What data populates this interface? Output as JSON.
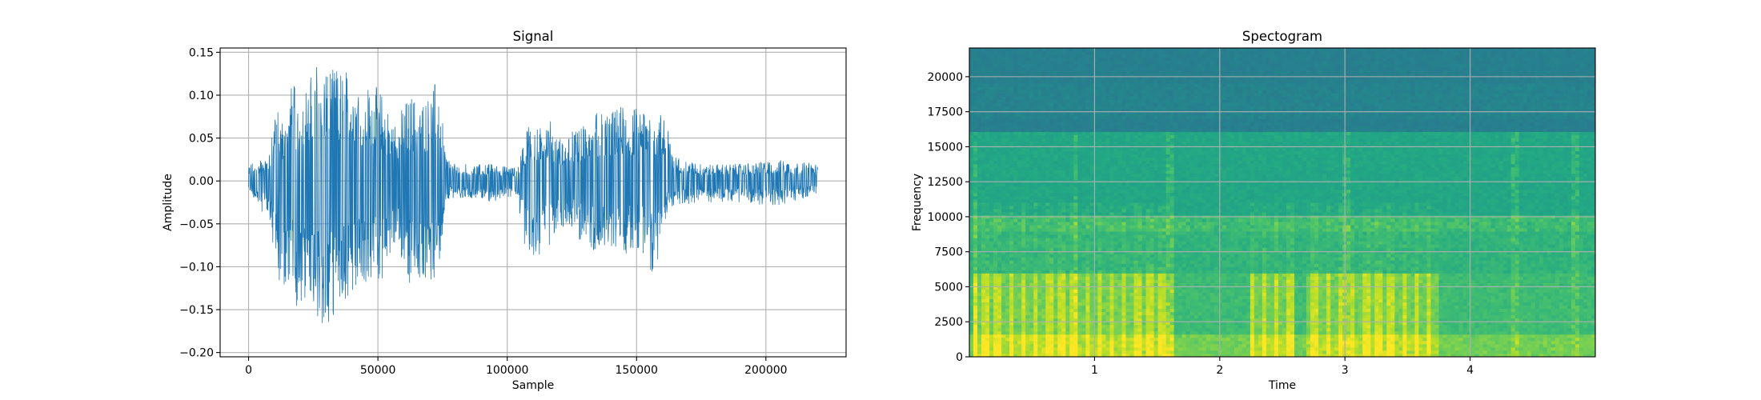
{
  "chart_data": [
    {
      "type": "line",
      "title": "Signal",
      "xlabel": "Sample",
      "ylabel": "Amplitude",
      "xlim": [
        -11000,
        231000
      ],
      "ylim": [
        -0.205,
        0.155
      ],
      "grid": true,
      "xticks": [
        0,
        50000,
        100000,
        150000,
        200000
      ],
      "xtick_labels": [
        "0",
        "50000",
        "100000",
        "150000",
        "200000"
      ],
      "yticks": [
        -0.2,
        -0.15,
        -0.1,
        -0.05,
        0.0,
        0.05,
        0.1,
        0.15
      ],
      "ytick_labels": [
        "−0.20",
        "−0.15",
        "−0.10",
        "−0.05",
        "0.00",
        "0.05",
        "0.10",
        "0.15"
      ],
      "color": "#1f77b4",
      "series": [
        {
          "x": [
            0,
            8000,
            10000,
            14000,
            17000,
            20000,
            24000,
            27000,
            30000,
            33000,
            36000,
            39000,
            42000,
            44000,
            48000,
            52000,
            56000,
            60000,
            63000,
            66000,
            70000,
            72000,
            74000,
            76000,
            78000,
            84000,
            94000,
            104000,
            108000,
            112000,
            116000,
            120000,
            124000,
            128000,
            132000,
            136000,
            140000,
            144000,
            148000,
            152000,
            156000,
            160000,
            162000,
            164000,
            175000,
            190000,
            205000,
            220000
          ],
          "upper": [
            0.02,
            0.03,
            0.095,
            0.065,
            0.12,
            0.085,
            0.13,
            0.14,
            0.135,
            0.13,
            0.13,
            0.13,
            0.13,
            0.11,
            0.115,
            0.1,
            0.065,
            0.09,
            0.1,
            0.09,
            0.1,
            0.115,
            0.13,
            0.035,
            0.02,
            0.02,
            0.02,
            0.015,
            0.07,
            0.06,
            0.075,
            0.05,
            0.06,
            0.06,
            0.08,
            0.08,
            0.08,
            0.09,
            0.085,
            0.09,
            0.085,
            0.08,
            0.105,
            0.03,
            0.02,
            0.02,
            0.025,
            0.02
          ],
          "lower": [
            -0.01,
            -0.05,
            -0.09,
            -0.15,
            -0.125,
            -0.165,
            -0.13,
            -0.17,
            -0.19,
            -0.16,
            -0.14,
            -0.15,
            -0.13,
            -0.12,
            -0.12,
            -0.12,
            -0.075,
            -0.1,
            -0.13,
            -0.12,
            -0.14,
            -0.11,
            -0.09,
            -0.03,
            -0.02,
            -0.02,
            -0.025,
            -0.02,
            -0.1,
            -0.09,
            -0.08,
            -0.06,
            -0.05,
            -0.07,
            -0.085,
            -0.075,
            -0.085,
            -0.09,
            -0.08,
            -0.08,
            -0.11,
            -0.08,
            -0.03,
            -0.03,
            -0.025,
            -0.025,
            -0.03,
            -0.015
          ]
        }
      ]
    },
    {
      "type": "heatmap",
      "title": "Spectogram",
      "xlabel": "Time",
      "ylabel": "Frequency",
      "xlim": [
        0,
        5
      ],
      "ylim": [
        0,
        22050
      ],
      "grid": true,
      "xticks": [
        1,
        2,
        3,
        4
      ],
      "xtick_labels": [
        "1",
        "2",
        "3",
        "4"
      ],
      "yticks": [
        0,
        2500,
        5000,
        7500,
        10000,
        12500,
        15000,
        17500,
        20000
      ],
      "ytick_labels": [
        "0",
        "2500",
        "5000",
        "7500",
        "10000",
        "12500",
        "15000",
        "17500",
        "20000"
      ],
      "colormap": "viridis",
      "colormap_stops": [
        "#2a788e",
        "#21918c",
        "#22a884",
        "#44bf70",
        "#7ad151",
        "#bddf26",
        "#fde725"
      ],
      "voiced_segments": [
        [
          0.02,
          1.65
        ],
        [
          2.25,
          2.6
        ],
        [
          2.7,
          3.75
        ]
      ],
      "bright_burst_times": [
        0.05,
        0.85,
        1.6,
        3.0,
        4.35,
        4.85
      ]
    }
  ]
}
